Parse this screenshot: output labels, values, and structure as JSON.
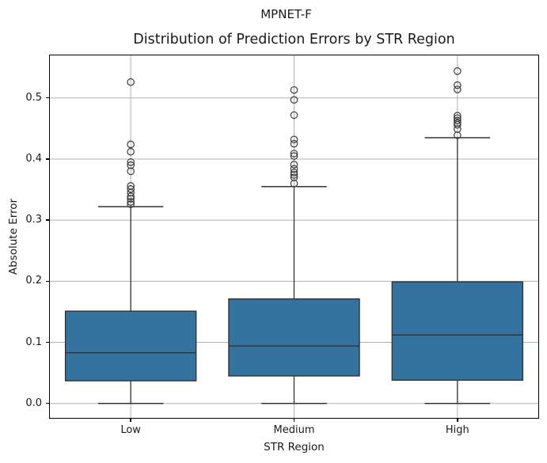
{
  "chart_data": {
    "type": "boxplot",
    "suptitle": "MPNET-F",
    "title": "Distribution of Prediction Errors by STR Region",
    "xlabel": "STR Region",
    "ylabel": "Absolute Error",
    "categories": [
      "Low",
      "Medium",
      "High"
    ],
    "series": [
      {
        "name": "Low",
        "whislo": 0.0,
        "q1": 0.037,
        "med": 0.083,
        "q3": 0.151,
        "whishi": 0.322,
        "fliers": [
          0.526,
          0.424,
          0.412,
          0.395,
          0.39,
          0.38,
          0.356,
          0.351,
          0.345,
          0.339,
          0.335,
          0.33,
          0.326
        ]
      },
      {
        "name": "Medium",
        "whislo": 0.0,
        "q1": 0.045,
        "med": 0.094,
        "q3": 0.171,
        "whishi": 0.355,
        "fliers": [
          0.513,
          0.497,
          0.472,
          0.432,
          0.425,
          0.409,
          0.405,
          0.391,
          0.384,
          0.378,
          0.374,
          0.37,
          0.36
        ]
      },
      {
        "name": "High",
        "whislo": 0.0,
        "q1": 0.038,
        "med": 0.112,
        "q3": 0.199,
        "whishi": 0.435,
        "fliers": [
          0.544,
          0.521,
          0.514,
          0.471,
          0.467,
          0.463,
          0.459,
          0.456,
          0.449,
          0.439
        ]
      }
    ],
    "yticks": [
      0.0,
      0.1,
      0.2,
      0.3,
      0.4,
      0.5
    ],
    "ylim": [
      -0.025,
      0.571
    ],
    "grid": true,
    "legend": "none",
    "colors": {
      "box_fill": "#3473a0",
      "box_edge": "#333333",
      "median": "#333333",
      "whisker": "#333333",
      "flier_edge": "#3a3a3a",
      "grid": "#b0b0b0",
      "frame": "#000000"
    }
  }
}
